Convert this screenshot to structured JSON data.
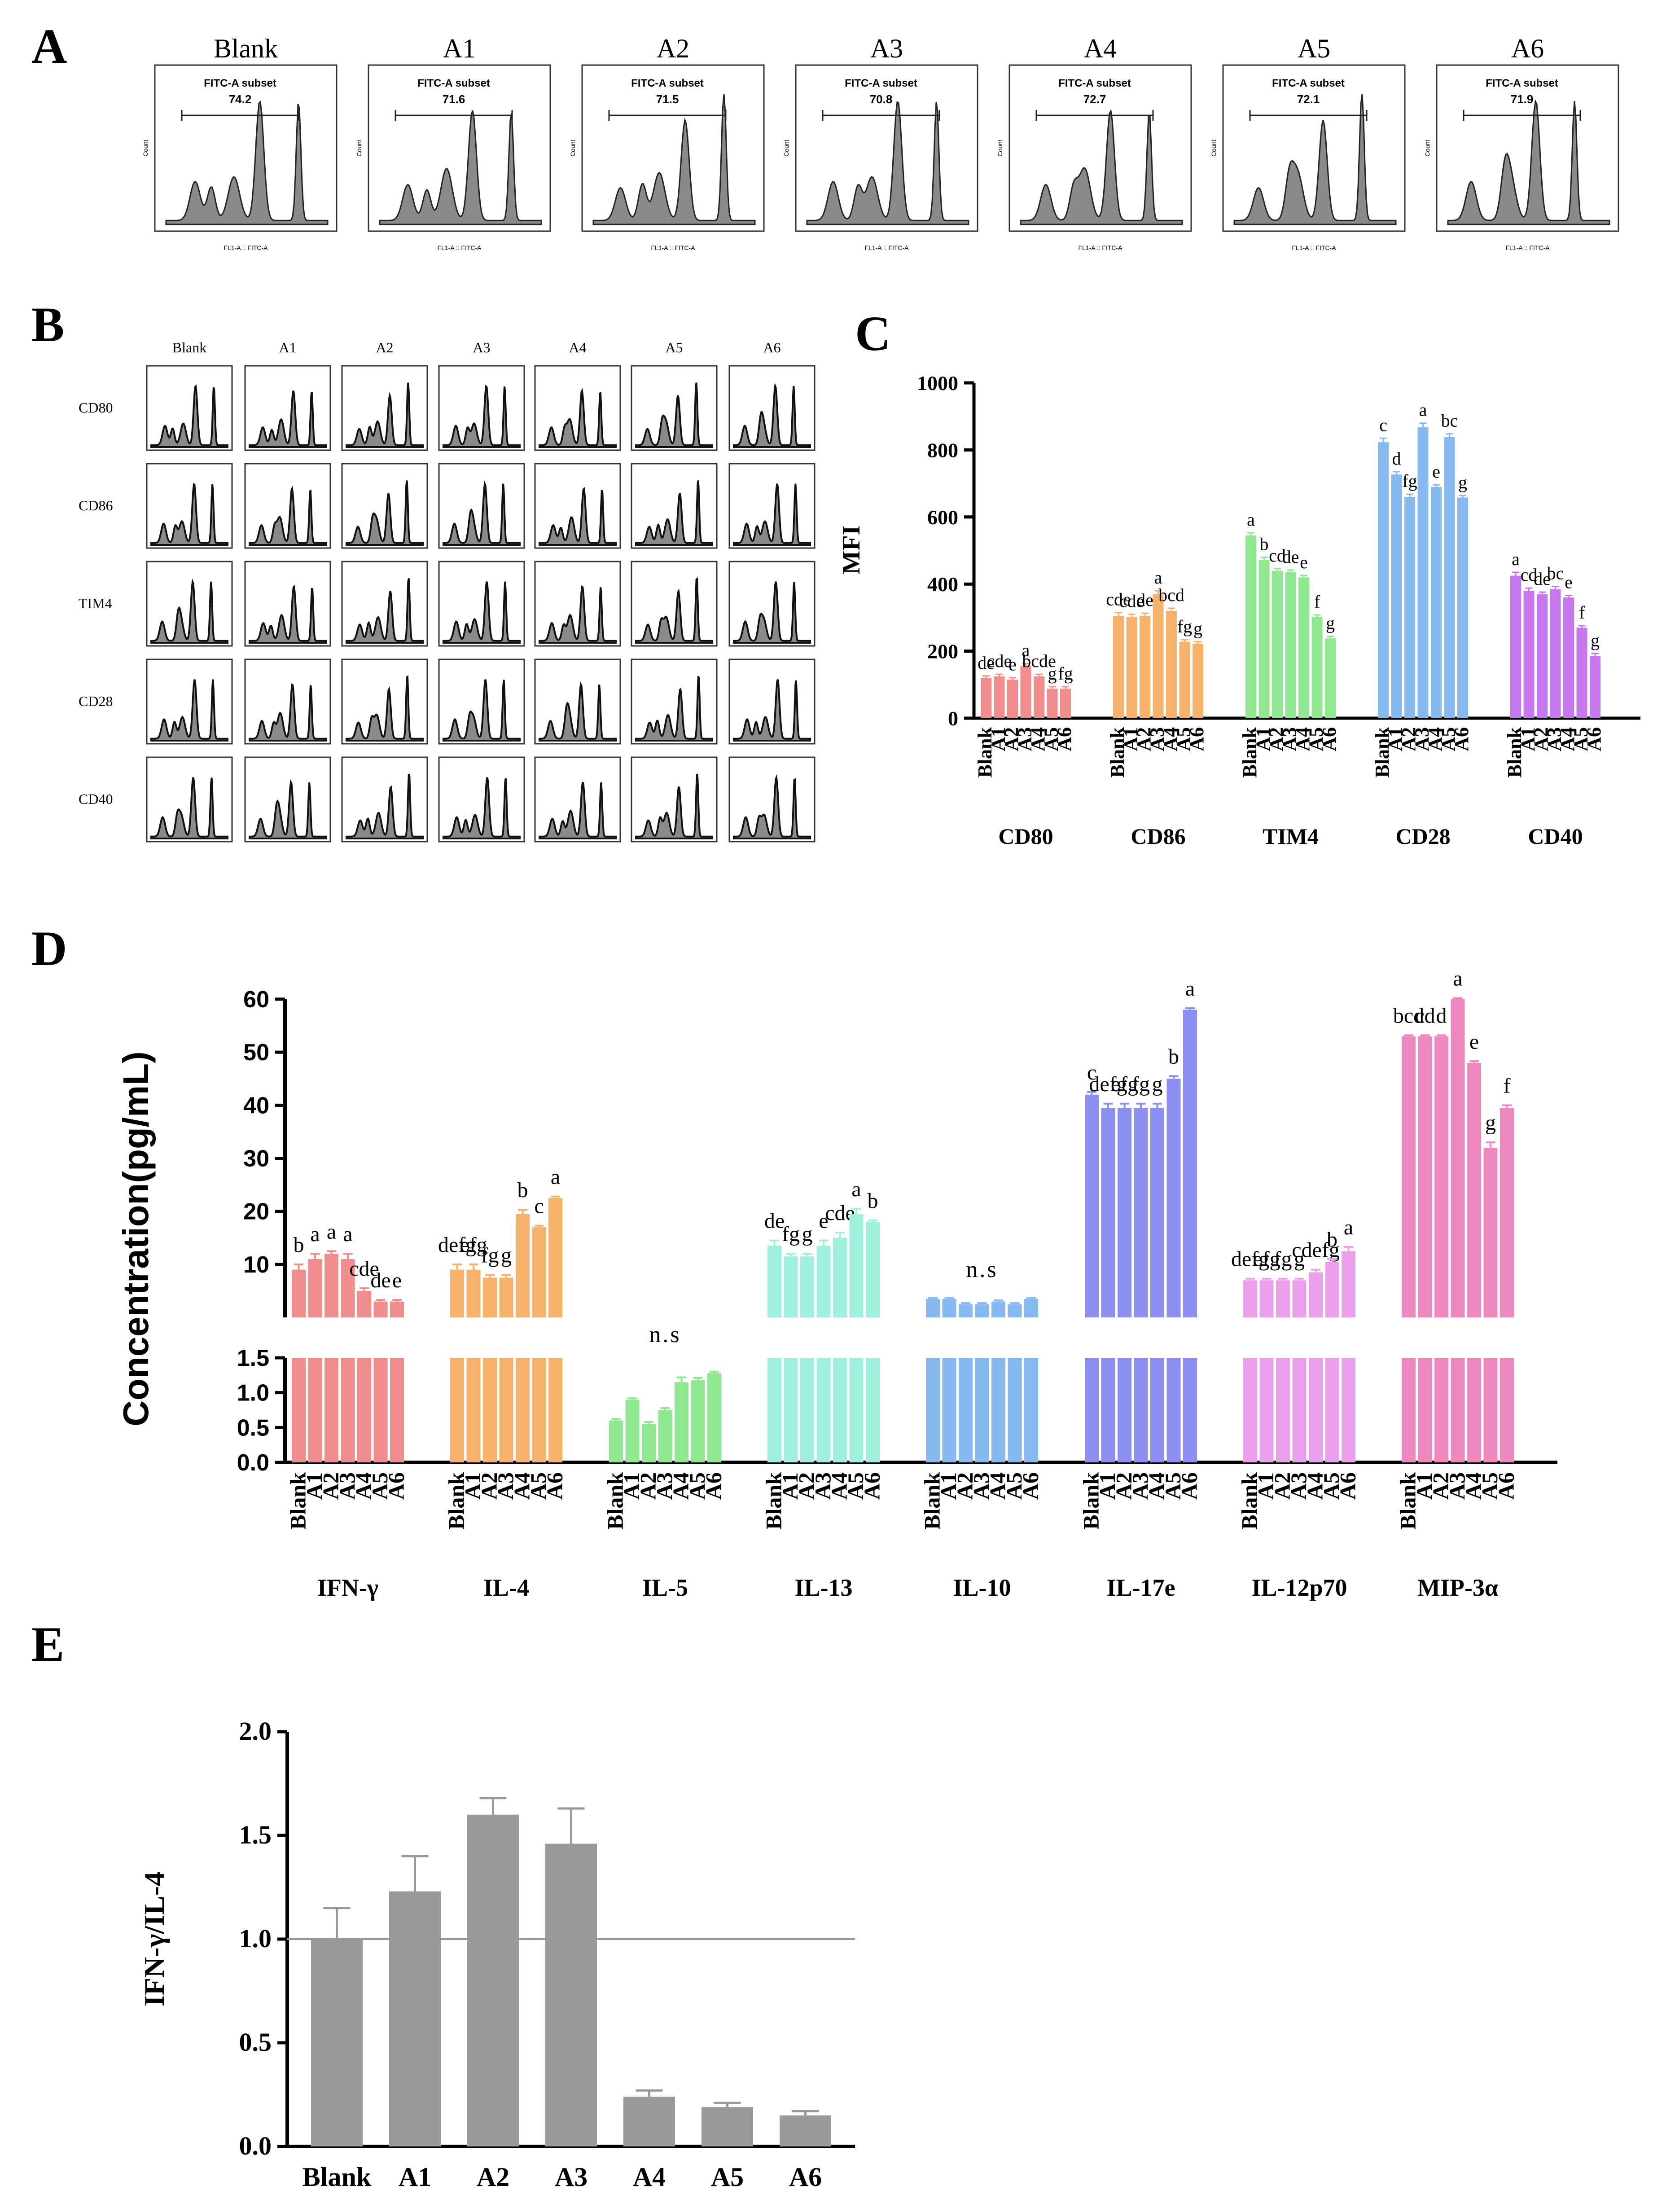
{
  "figure": {
    "panel_labels": [
      "A",
      "B",
      "C",
      "D",
      "E"
    ]
  },
  "panel_a": {
    "type": "flow-histograms",
    "groups": [
      "Blank",
      "A1",
      "A2",
      "A3",
      "A4",
      "A5",
      "A6"
    ],
    "gate_title": "FITC-A subset",
    "gate_values": [
      "74.2",
      "71.6",
      "71.5",
      "70.8",
      "72.7",
      "72.1",
      "71.9"
    ],
    "y_axis_label": "Count",
    "x_axis_label": "FL1-A :: FITC-A"
  },
  "panel_b": {
    "type": "flow-histograms",
    "groups": [
      "Blank",
      "A1",
      "A2",
      "A3",
      "A4",
      "A5",
      "A6"
    ],
    "markers": [
      "CD80",
      "CD86",
      "TIM4",
      "CD28",
      "CD40"
    ]
  },
  "chart_data": [
    {
      "panel": "C",
      "type": "bar",
      "ylabel": "MFI",
      "ylim": [
        0,
        1000
      ],
      "yticks": [
        "0",
        "200",
        "400",
        "600",
        "800",
        "1000"
      ],
      "categories": [
        "Blank",
        "A1",
        "A2",
        "A3",
        "A4",
        "A5",
        "A6"
      ],
      "series": [
        {
          "name": "CD80",
          "color": "#f28d8d",
          "values": [
            120,
            125,
            115,
            155,
            125,
            88,
            88
          ],
          "errors": [
            6,
            6,
            6,
            8,
            6,
            6,
            6
          ],
          "letters": [
            "de",
            "cde",
            "e",
            "a",
            "bcde",
            "g",
            "fg"
          ]
        },
        {
          "name": "CD86",
          "color": "#f6b26b",
          "values": [
            305,
            302,
            305,
            370,
            320,
            228,
            222
          ],
          "errors": [
            10,
            8,
            8,
            10,
            8,
            6,
            6
          ],
          "letters": [
            "cde",
            "cde",
            "de",
            "a",
            "bcd",
            "fg",
            "g"
          ]
        },
        {
          "name": "TIM4",
          "color": "#8fe88f",
          "values": [
            545,
            472,
            440,
            436,
            420,
            302,
            238
          ],
          "errors": [
            8,
            8,
            6,
            6,
            6,
            6,
            6
          ],
          "letters": [
            "a",
            "b",
            "cd",
            "de",
            "e",
            "f",
            "g"
          ]
        },
        {
          "name": "CD28",
          "color": "#86b9ef",
          "values": [
            823,
            727,
            660,
            868,
            690,
            838,
            658
          ],
          "errors": [
            12,
            8,
            8,
            12,
            6,
            10,
            6
          ],
          "letters": [
            "c",
            "d",
            "fg",
            "a",
            "e",
            "bc",
            "g"
          ]
        },
        {
          "name": "CD40",
          "color": "#c878ef",
          "values": [
            425,
            380,
            370,
            385,
            360,
            270,
            185
          ],
          "errors": [
            10,
            8,
            6,
            8,
            6,
            6,
            8
          ],
          "letters": [
            "a",
            "cd",
            "de",
            "bc",
            "e",
            "f",
            "g"
          ]
        }
      ]
    },
    {
      "panel": "D",
      "type": "bar",
      "broken_axis": true,
      "ylabel": "Concentration(pg/mL)",
      "upper_ylim": [
        0,
        60
      ],
      "upper_yticks": [
        "10",
        "20",
        "30",
        "40",
        "50",
        "60"
      ],
      "lower_ylim": [
        0,
        1.5
      ],
      "lower_yticks": [
        "0.0",
        "0.5",
        "1.0",
        "1.5"
      ],
      "categories": [
        "Blank",
        "A1",
        "A2",
        "A3",
        "A4",
        "A5",
        "A6"
      ],
      "series": [
        {
          "name": "IFN-γ",
          "color": "#f28d8d",
          "values": [
            9,
            11,
            12,
            11,
            5,
            3,
            3
          ],
          "errors": [
            1,
            1,
            0.5,
            1,
            0.5,
            0.3,
            0.3
          ],
          "letters": [
            "b",
            "a",
            "a",
            "a",
            "cde",
            "de",
            "e"
          ]
        },
        {
          "name": "IL-4",
          "color": "#f6b26b",
          "values": [
            9,
            9,
            7.5,
            7.5,
            19.5,
            17,
            22.5
          ],
          "errors": [
            1,
            1,
            0.5,
            0.5,
            0.8,
            0.3,
            0.3
          ],
          "letters": [
            "defg",
            "efg",
            "fg",
            "g",
            "b",
            "c",
            "a"
          ]
        },
        {
          "name": "IL-5",
          "color": "#8fe88f",
          "values": [
            0.6,
            0.9,
            0.55,
            0.75,
            1.15,
            1.18,
            1.28
          ],
          "errors": [
            0.02,
            0.02,
            0.03,
            0.03,
            0.07,
            0.03,
            0.02
          ],
          "annotation": "n.s"
        },
        {
          "name": "IL-13",
          "color": "#9ff0dc",
          "values": [
            13.5,
            11.5,
            11.5,
            13.5,
            15,
            19.5,
            18
          ],
          "errors": [
            1,
            0.5,
            0.5,
            1,
            1,
            1,
            0.3
          ],
          "letters": [
            "de",
            "fg",
            "g",
            "e",
            "cde",
            "a",
            "b"
          ]
        },
        {
          "name": "IL-10",
          "color": "#86b9ef",
          "values": [
            3.5,
            3.5,
            2.5,
            2.5,
            3,
            2.5,
            3.5
          ],
          "errors": [
            0.2,
            0.2,
            0.2,
            0.2,
            0.2,
            0.2,
            0.2
          ],
          "annotation": "n.s"
        },
        {
          "name": "IL-17e",
          "color": "#8b8fef",
          "values": [
            42,
            39.5,
            39.5,
            39.5,
            39.5,
            45,
            58
          ],
          "errors": [
            0.5,
            0.8,
            0.8,
            0.8,
            0.8,
            0.5,
            0.3
          ],
          "letters": [
            "c",
            "defg",
            "efg",
            "fg",
            "g",
            "b",
            "a"
          ]
        },
        {
          "name": "IL-12p70",
          "color": "#eaa0ea",
          "values": [
            7,
            7,
            7,
            7,
            8.5,
            10.5,
            12.5
          ],
          "errors": [
            0.3,
            0.3,
            0.3,
            0.3,
            0.5,
            0.5,
            0.8
          ],
          "letters": [
            "defg",
            "efg",
            "fg",
            "g",
            "cdefg",
            "b",
            "a"
          ]
        },
        {
          "name": "MIP-3α",
          "color": "#ee88be",
          "values": [
            53,
            53,
            53,
            60,
            48,
            32,
            39.5
          ],
          "errors": [
            0.2,
            0.2,
            0.2,
            0.2,
            0.3,
            1,
            0.5
          ],
          "letters": [
            "bcd",
            "cd",
            "d",
            "a",
            "e",
            "g",
            "f"
          ]
        }
      ]
    },
    {
      "panel": "E",
      "type": "bar",
      "ylabel": "IFN-γ/IL-4",
      "ylim": [
        0,
        2.0
      ],
      "yticks": [
        "0.0",
        "0.5",
        "1.0",
        "1.5",
        "2.0"
      ],
      "reference_line": 1.0,
      "categories": [
        "Blank",
        "A1",
        "A2",
        "A3",
        "A4",
        "A5",
        "A6"
      ],
      "values": [
        1.0,
        1.23,
        1.6,
        1.46,
        0.24,
        0.19,
        0.15
      ],
      "errors": [
        0.15,
        0.17,
        0.08,
        0.17,
        0.03,
        0.02,
        0.02
      ],
      "color": "#999999"
    }
  ]
}
